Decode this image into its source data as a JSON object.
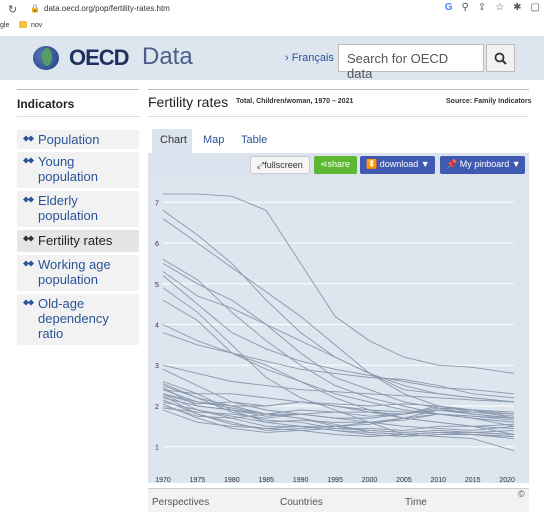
{
  "browser": {
    "url": "data.oecd.org/pop/fertility-rates.htm",
    "bookmark_1": "gle",
    "bookmark_2": "nov"
  },
  "header": {
    "logo": "OECD",
    "logo_data": "Data",
    "language_link": "› Français",
    "search_placeholder": "Search for OECD data"
  },
  "sidebar": {
    "title": "Indicators",
    "items": [
      {
        "label": "Population"
      },
      {
        "label": "Young population"
      },
      {
        "label": "Elderly population"
      },
      {
        "label": "Fertility rates",
        "active": true
      },
      {
        "label": "Working age population"
      },
      {
        "label": "Old-age dependency ratio"
      }
    ]
  },
  "main": {
    "title": "Fertility rates",
    "subtitle": "Total, Children/woman, 1970 – 2021",
    "source": "Source: Family Indicators",
    "tabs": [
      "Chart",
      "Map",
      "Table"
    ],
    "buttons": {
      "fullscreen": "fullscreen",
      "share": "share",
      "download": "download ▼",
      "pinboard": "My pinboard ▼"
    },
    "bottom_tabs": [
      "Perspectives",
      "Countries",
      "Time"
    ],
    "copyright": "©"
  },
  "colors": {
    "link": "#2a5398",
    "header_bg": "#dde5ef",
    "share_green": "#5cb832",
    "button_blue": "#3f5ab0",
    "line_color": "#8a98ad"
  },
  "chart_data": {
    "type": "line",
    "x_ticks": [
      1970,
      1975,
      1980,
      1985,
      1990,
      1995,
      2000,
      2005,
      2010,
      2015,
      2020
    ],
    "y_ticks": [
      1,
      2,
      3,
      4,
      5,
      6,
      7
    ],
    "xlim": [
      1970,
      2021
    ],
    "ylim": [
      0.6,
      7.4
    ],
    "grid": true,
    "series": [
      {
        "x": [
          1970,
          1975,
          1980,
          1985,
          1990,
          1995,
          2000,
          2005,
          2010,
          2015,
          2021
        ],
        "y": [
          7.2,
          7.2,
          7.15,
          6.8,
          5.5,
          4.2,
          3.6,
          3.2,
          3.0,
          2.95,
          2.8
        ]
      },
      {
        "x": [
          1970,
          1975,
          1980,
          1985,
          1990,
          1995,
          2000,
          2005,
          2010,
          2015,
          2021
        ],
        "y": [
          6.8,
          6.2,
          5.5,
          4.6,
          3.8,
          3.2,
          2.8,
          2.4,
          2.3,
          2.2,
          2.1
        ]
      },
      {
        "x": [
          1970,
          1975,
          1980,
          1985,
          1990,
          1995,
          2000,
          2005,
          2010,
          2015,
          2021
        ],
        "y": [
          6.6,
          6.0,
          5.4,
          4.8,
          4.2,
          3.5,
          2.8,
          2.3,
          2.0,
          1.9,
          1.7
        ]
      },
      {
        "x": [
          1970,
          1975,
          1980,
          1985,
          1990,
          1995,
          2000,
          2005,
          2010,
          2015,
          2021
        ],
        "y": [
          5.6,
          5.1,
          4.3,
          3.6,
          3.0,
          2.5,
          2.2,
          2.0,
          1.8,
          1.7,
          1.6
        ]
      },
      {
        "x": [
          1970,
          1975,
          1980,
          1985,
          1990,
          1995,
          2000,
          2005,
          2010,
          2015,
          2021
        ],
        "y": [
          5.5,
          5.0,
          4.6,
          4.0,
          3.3,
          2.7,
          2.4,
          2.1,
          1.95,
          1.8,
          1.7
        ]
      },
      {
        "x": [
          1970,
          1975,
          1980,
          1985,
          1990,
          1995,
          2000,
          2005,
          2010,
          2015,
          2021
        ],
        "y": [
          5.3,
          4.7,
          4.4,
          4.0,
          3.6,
          3.2,
          2.8,
          2.5,
          2.3,
          2.2,
          2.1
        ]
      },
      {
        "x": [
          1970,
          1975,
          1980,
          1985,
          1990,
          1995,
          2000,
          2005,
          2010,
          2015,
          2021
        ],
        "y": [
          5.2,
          4.5,
          3.8,
          3.4,
          3.1,
          2.9,
          2.75,
          2.6,
          2.45,
          2.4,
          2.3
        ]
      },
      {
        "x": [
          1970,
          1975,
          1980,
          1985,
          1990,
          1995,
          2000,
          2005,
          2010,
          2015,
          2021
        ],
        "y": [
          4.9,
          4.3,
          3.5,
          2.7,
          2.2,
          1.9,
          1.6,
          1.3,
          1.25,
          1.2,
          0.9
        ]
      },
      {
        "x": [
          1970,
          1975,
          1980,
          1985,
          1990,
          1995,
          2000,
          2005,
          2010,
          2015,
          2021
        ],
        "y": [
          4.6,
          4.1,
          3.3,
          2.9,
          2.6,
          2.3,
          2.1,
          1.9,
          1.8,
          1.7,
          1.5
        ]
      },
      {
        "x": [
          1970,
          1975,
          1980,
          1985,
          1990,
          1995,
          2000,
          2005,
          2010,
          2015,
          2021
        ],
        "y": [
          4.0,
          3.6,
          3.3,
          3.0,
          2.6,
          2.2,
          1.9,
          1.7,
          1.6,
          1.5,
          1.3
        ]
      },
      {
        "x": [
          1970,
          1975,
          1980,
          1985,
          1990,
          1995,
          2000,
          2005,
          2010,
          2015,
          2021
        ],
        "y": [
          3.8,
          3.5,
          3.3,
          3.1,
          2.9,
          2.8,
          2.7,
          2.65,
          2.5,
          2.3,
          2.2
        ]
      },
      {
        "x": [
          1970,
          1975,
          1980,
          1985,
          1990,
          1995,
          2000,
          2005,
          2010,
          2015,
          2021
        ],
        "y": [
          3.0,
          2.8,
          2.6,
          2.5,
          2.4,
          2.35,
          2.3,
          2.25,
          2.2,
          2.15,
          2.1
        ]
      },
      {
        "x": [
          1970,
          1975,
          1980,
          1985,
          1990,
          1995,
          2000,
          2005,
          2010,
          2015,
          2021
        ],
        "y": [
          2.9,
          2.5,
          2.1,
          1.9,
          1.8,
          1.7,
          1.6,
          1.5,
          1.45,
          1.4,
          1.5
        ]
      },
      {
        "x": [
          1970,
          1975,
          1980,
          1985,
          1990,
          1995,
          2000,
          2005,
          2010,
          2015,
          2021
        ],
        "y": [
          2.6,
          2.3,
          1.9,
          1.6,
          1.5,
          1.4,
          1.35,
          1.3,
          1.35,
          1.3,
          1.2
        ]
      },
      {
        "x": [
          1970,
          1975,
          1980,
          1985,
          1990,
          1995,
          2000,
          2005,
          2010,
          2015,
          2021
        ],
        "y": [
          2.5,
          2.2,
          2.0,
          1.8,
          1.8,
          1.7,
          1.7,
          1.8,
          1.9,
          1.8,
          1.7
        ]
      },
      {
        "x": [
          1970,
          1975,
          1980,
          1985,
          1990,
          1995,
          2000,
          2005,
          2010,
          2015,
          2021
        ],
        "y": [
          2.45,
          2.0,
          1.9,
          1.8,
          1.9,
          1.85,
          1.75,
          1.8,
          1.9,
          1.85,
          1.8
        ]
      },
      {
        "x": [
          1970,
          1975,
          1980,
          1985,
          1990,
          1995,
          2000,
          2005,
          2010,
          2015,
          2021
        ],
        "y": [
          2.4,
          2.1,
          1.95,
          1.8,
          1.7,
          1.5,
          1.4,
          1.35,
          1.4,
          1.35,
          1.3
        ]
      },
      {
        "x": [
          1970,
          1975,
          1980,
          1985,
          1990,
          1995,
          2000,
          2005,
          2010,
          2015,
          2021
        ],
        "y": [
          2.3,
          1.9,
          1.7,
          1.5,
          1.5,
          1.5,
          1.55,
          1.7,
          1.9,
          1.8,
          1.7
        ]
      },
      {
        "x": [
          1970,
          1975,
          1980,
          1985,
          1990,
          1995,
          2000,
          2005,
          2010,
          2015,
          2021
        ],
        "y": [
          2.3,
          2.1,
          2.0,
          2.0,
          2.1,
          2.0,
          1.9,
          1.85,
          1.8,
          1.7,
          1.6
        ]
      },
      {
        "x": [
          1970,
          1975,
          1980,
          1985,
          1990,
          1995,
          2000,
          2005,
          2010,
          2015,
          2021
        ],
        "y": [
          2.25,
          1.8,
          1.6,
          1.4,
          1.45,
          1.5,
          1.6,
          1.7,
          1.8,
          1.75,
          1.65
        ]
      },
      {
        "x": [
          1970,
          1975,
          1980,
          1985,
          1990,
          1995,
          2000,
          2005,
          2010,
          2015,
          2021
        ],
        "y": [
          2.2,
          2.0,
          1.9,
          1.75,
          1.8,
          1.7,
          1.7,
          1.8,
          2.0,
          1.9,
          1.8
        ]
      },
      {
        "x": [
          1970,
          1975,
          1980,
          1985,
          1990,
          1995,
          2000,
          2005,
          2010,
          2015,
          2021
        ],
        "y": [
          2.15,
          1.8,
          1.55,
          1.45,
          1.4,
          1.3,
          1.25,
          1.3,
          1.35,
          1.3,
          1.25
        ]
      },
      {
        "x": [
          1970,
          1975,
          1980,
          1985,
          1990,
          1995,
          2000,
          2005,
          2010,
          2015,
          2021
        ],
        "y": [
          2.1,
          1.9,
          1.75,
          1.6,
          1.65,
          1.6,
          1.6,
          1.65,
          1.8,
          1.75,
          1.7
        ]
      },
      {
        "x": [
          1970,
          1975,
          1980,
          1985,
          1990,
          1995,
          2000,
          2005,
          2010,
          2015,
          2021
        ],
        "y": [
          2.05,
          1.7,
          1.45,
          1.35,
          1.4,
          1.45,
          1.45,
          1.4,
          1.5,
          1.5,
          1.55
        ]
      },
      {
        "x": [
          1970,
          1975,
          1980,
          1985,
          1990,
          1995,
          2000,
          2005,
          2010,
          2015,
          2021
        ],
        "y": [
          2.0,
          1.75,
          1.7,
          1.8,
          1.7,
          1.55,
          1.35,
          1.3,
          1.35,
          1.35,
          1.4
        ]
      },
      {
        "x": [
          1970,
          1975,
          1980,
          1985,
          1990,
          1995,
          2000,
          2005,
          2010,
          2015,
          2021
        ],
        "y": [
          1.95,
          1.85,
          1.8,
          1.7,
          1.8,
          1.85,
          1.85,
          1.8,
          1.95,
          1.9,
          1.85
        ]
      },
      {
        "x": [
          1970,
          1975,
          1980,
          1985,
          1990,
          1995,
          2000,
          2005,
          2010,
          2015,
          2021
        ],
        "y": [
          1.9,
          1.6,
          1.5,
          1.45,
          1.5,
          1.4,
          1.3,
          1.25,
          1.3,
          1.3,
          1.25
        ]
      },
      {
        "x": [
          1970,
          1975,
          1980,
          1985,
          1990,
          1995,
          2000,
          2005,
          2010,
          2015,
          2021
        ],
        "y": [
          2.3,
          2.05,
          2.1,
          2.0,
          2.1,
          2.05,
          2.0,
          2.05,
          2.0,
          1.85,
          1.75
        ]
      },
      {
        "x": [
          1970,
          1975,
          1980,
          1985,
          1990,
          1995,
          2000,
          2005,
          2010,
          2015,
          2021
        ],
        "y": [
          2.55,
          2.2,
          1.85,
          1.65,
          1.6,
          1.45,
          1.4,
          1.35,
          1.4,
          1.35,
          1.3
        ]
      },
      {
        "x": [
          1970,
          1975,
          1980,
          1985,
          1990,
          1995,
          2000,
          2005,
          2010,
          2015,
          2021
        ],
        "y": [
          2.4,
          2.3,
          2.3,
          2.2,
          2.1,
          2.0,
          1.85,
          1.7,
          1.6,
          1.5,
          1.45
        ]
      }
    ]
  }
}
